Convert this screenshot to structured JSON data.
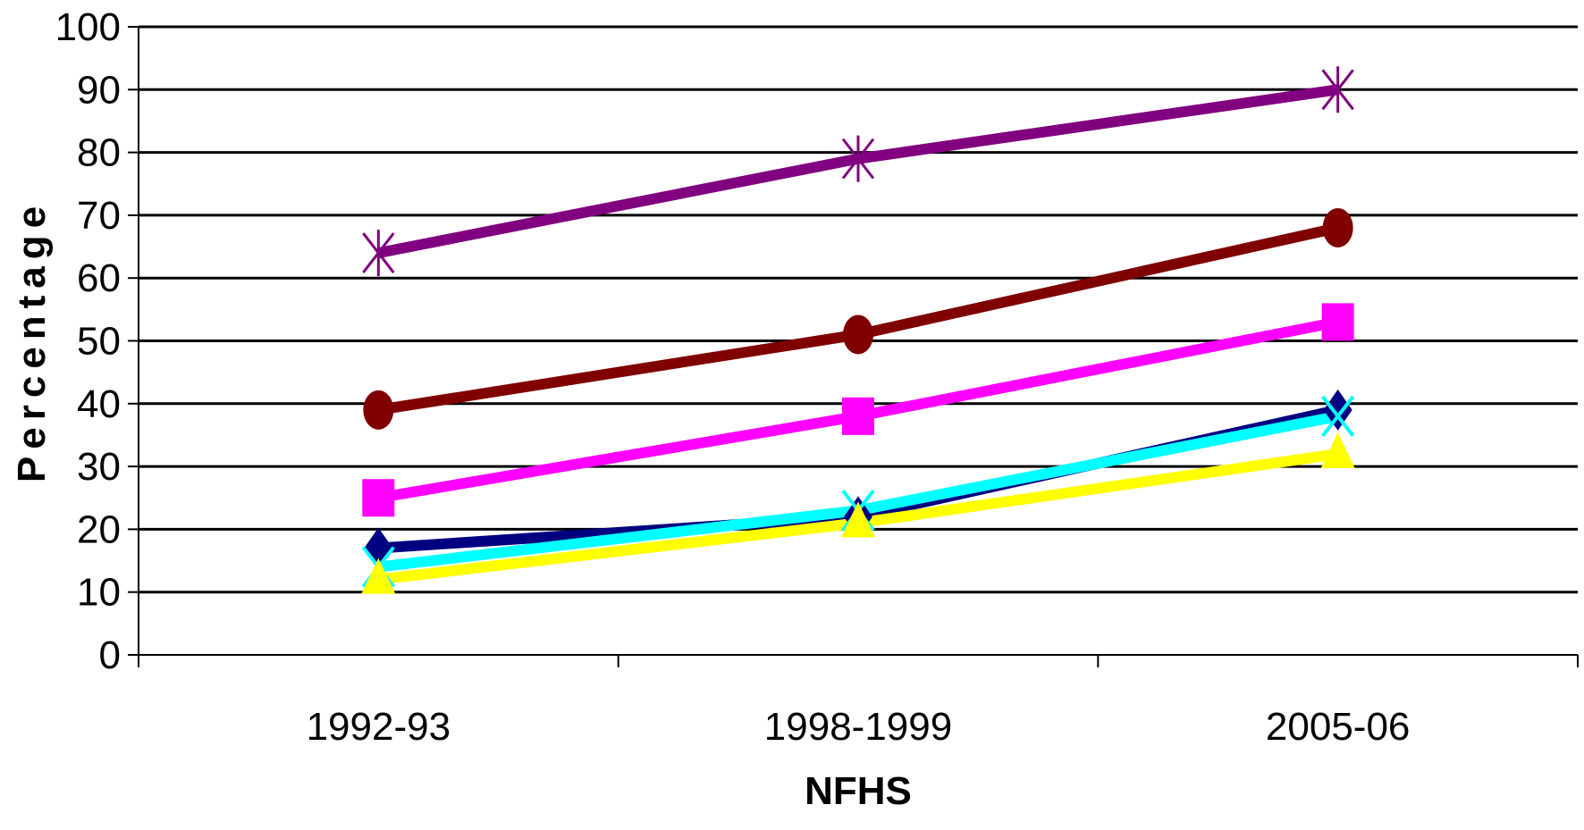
{
  "chart_data": {
    "type": "line",
    "title": "",
    "xlabel": "NFHS",
    "ylabel": "Percentage",
    "categories": [
      "1992-93",
      "1998-1999",
      "2005-06"
    ],
    "ylim": [
      0,
      100
    ],
    "yticks": [
      0,
      10,
      20,
      30,
      40,
      50,
      60,
      70,
      80,
      90,
      100
    ],
    "grid": true,
    "legend": "none",
    "series": [
      {
        "values": [
          64,
          79,
          90
        ],
        "color": "#800080",
        "marker": "asterisk"
      },
      {
        "values": [
          39,
          51,
          68
        ],
        "color": "#800000",
        "marker": "circle"
      },
      {
        "values": [
          25,
          38,
          53
        ],
        "color": "#ff00ff",
        "marker": "square"
      },
      {
        "values": [
          17,
          22,
          39
        ],
        "color": "#000080",
        "marker": "diamond"
      },
      {
        "values": [
          14,
          23,
          38
        ],
        "color": "#00ffff",
        "marker": "x"
      },
      {
        "values": [
          12,
          21,
          32
        ],
        "color": "#ffff00",
        "marker": "triangle"
      }
    ]
  }
}
